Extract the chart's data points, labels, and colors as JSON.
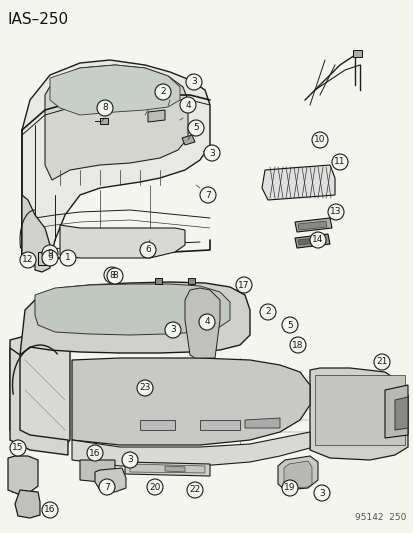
{
  "title": "IAS–250",
  "footer": "95142  250",
  "bg_color": "#f5f5f0",
  "fig_width": 4.14,
  "fig_height": 5.33,
  "dpi": 100
}
